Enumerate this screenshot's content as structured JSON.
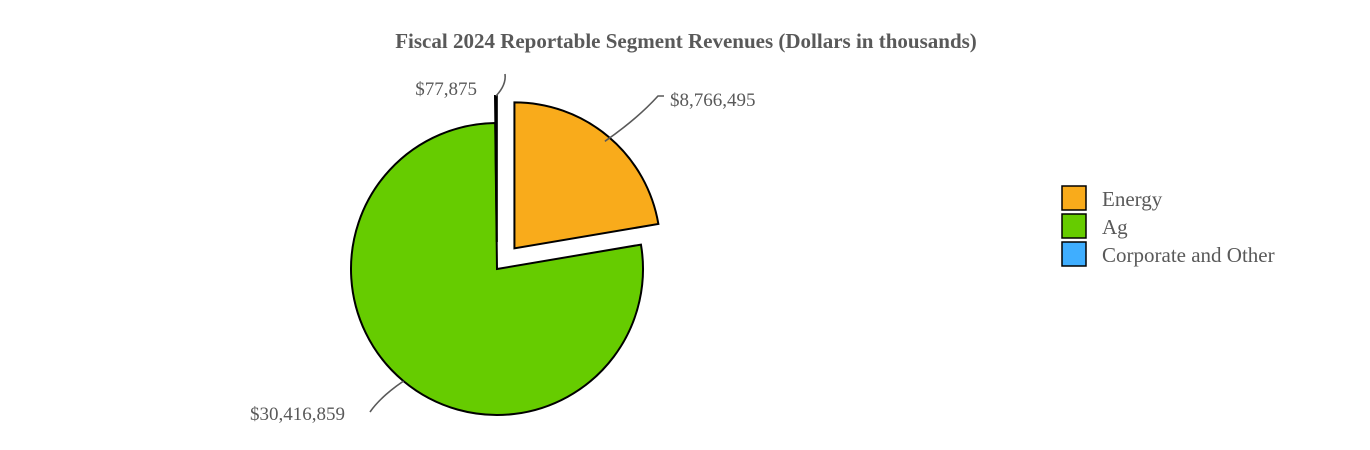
{
  "chart_data": {
    "type": "pie",
    "title": "Fiscal 2024 Reportable Segment Revenues (Dollars in thousands)",
    "slices": [
      {
        "name": "Energy",
        "value": 8766495,
        "label": "$8,766,495",
        "color": "#F9AB1B"
      },
      {
        "name": "Ag",
        "value": 30416859,
        "label": "$30,416,859",
        "color": "#66CC00"
      },
      {
        "name": "Corporate and Other",
        "value": 77875,
        "label": "$77,875",
        "color": "#3FAEFF"
      }
    ],
    "legend_position": "right"
  }
}
